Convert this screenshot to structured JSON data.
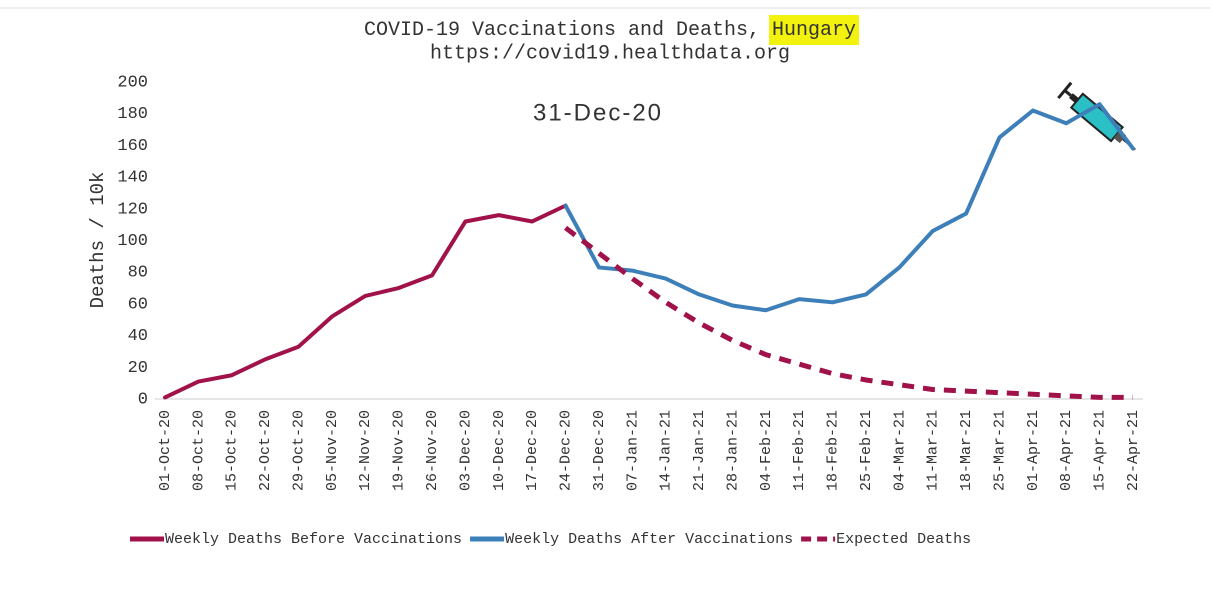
{
  "chart_data": {
    "type": "line",
    "title": "COVID-19 Vaccinations and Deaths,",
    "title_highlight": "Hungary",
    "subtitle": "https://covid19.healthdata.org",
    "annotation": "31-Dec-20",
    "y_label": "Deaths / 10k",
    "categories": [
      "01-Oct-20",
      "08-Oct-20",
      "15-Oct-20",
      "22-Oct-20",
      "29-Oct-20",
      "05-Nov-20",
      "12-Nov-20",
      "19-Nov-20",
      "26-Nov-20",
      "03-Dec-20",
      "10-Dec-20",
      "17-Dec-20",
      "24-Dec-20",
      "31-Dec-20",
      "07-Jan-21",
      "14-Jan-21",
      "21-Jan-21",
      "28-Jan-21",
      "04-Feb-21",
      "11-Feb-21",
      "18-Feb-21",
      "25-Feb-21",
      "04-Mar-21",
      "11-Mar-21",
      "18-Mar-21",
      "25-Mar-21",
      "01-Apr-21",
      "08-Apr-21",
      "15-Apr-21",
      "22-Apr-21"
    ],
    "series": [
      {
        "name": "Weekly Deaths Before Vaccinations",
        "color": "#a01249",
        "dashed": false,
        "values": [
          1,
          11,
          15,
          25,
          33,
          52,
          65,
          70,
          78,
          112,
          116,
          112,
          122,
          null,
          null,
          null,
          null,
          null,
          null,
          null,
          null,
          null,
          null,
          null,
          null,
          null,
          null,
          null,
          null,
          null
        ]
      },
      {
        "name": "Weekly Deaths After Vaccinations",
        "color": "#3d7fb9",
        "dashed": false,
        "values": [
          null,
          null,
          null,
          null,
          null,
          null,
          null,
          null,
          null,
          null,
          null,
          null,
          122,
          83,
          81,
          76,
          66,
          59,
          56,
          63,
          61,
          66,
          83,
          106,
          117,
          165,
          182,
          174,
          186,
          158
        ]
      },
      {
        "name": "Expected Deaths",
        "color": "#a01249",
        "dashed": true,
        "values": [
          null,
          null,
          null,
          null,
          null,
          null,
          null,
          null,
          null,
          null,
          null,
          null,
          108,
          92,
          76,
          61,
          48,
          37,
          28,
          22,
          16,
          12,
          9,
          6,
          5,
          4,
          3,
          2,
          1,
          1
        ]
      }
    ],
    "ylim": [
      0,
      200
    ],
    "yticks": [
      0,
      20,
      40,
      60,
      80,
      100,
      120,
      140,
      160,
      180,
      200
    ],
    "grid": false
  }
}
